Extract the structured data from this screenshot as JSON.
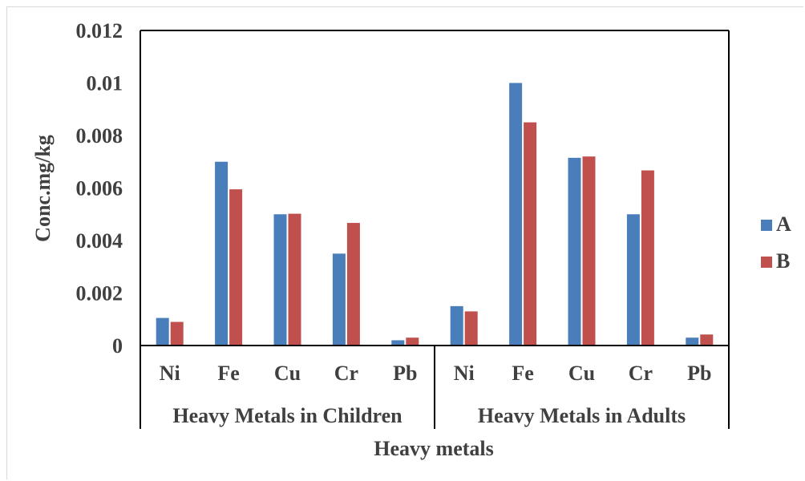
{
  "chart_data": {
    "type": "bar",
    "groups": [
      {
        "label": "Heavy Metals in Children",
        "categories": [
          "Ni",
          "Fe",
          "Cu",
          "Cr",
          "Pb"
        ]
      },
      {
        "label": "Heavy Metals in Adults",
        "categories": [
          "Ni",
          "Fe",
          "Cu",
          "Cr",
          "Pb"
        ]
      }
    ],
    "series": [
      {
        "name": "A",
        "color": "#4a7ebb",
        "values": [
          0.00105,
          0.007,
          0.005,
          0.0035,
          0.0002,
          0.0015,
          0.01,
          0.00715,
          0.005,
          0.0003
        ]
      },
      {
        "name": "B",
        "color": "#c0504d",
        "values": [
          0.0009,
          0.00595,
          0.00502,
          0.00467,
          0.0003,
          0.0013,
          0.0085,
          0.0072,
          0.00667,
          0.00042
        ]
      }
    ],
    "yticks": [
      "0",
      "0.002",
      "0.004",
      "0.006",
      "0.008",
      "0.01",
      "0.012"
    ],
    "ylim": [
      0,
      0.012
    ],
    "xlabel": "Heavy metals",
    "ylabel": "Conc.mg/kg",
    "grid": false,
    "legend_position": "right"
  }
}
